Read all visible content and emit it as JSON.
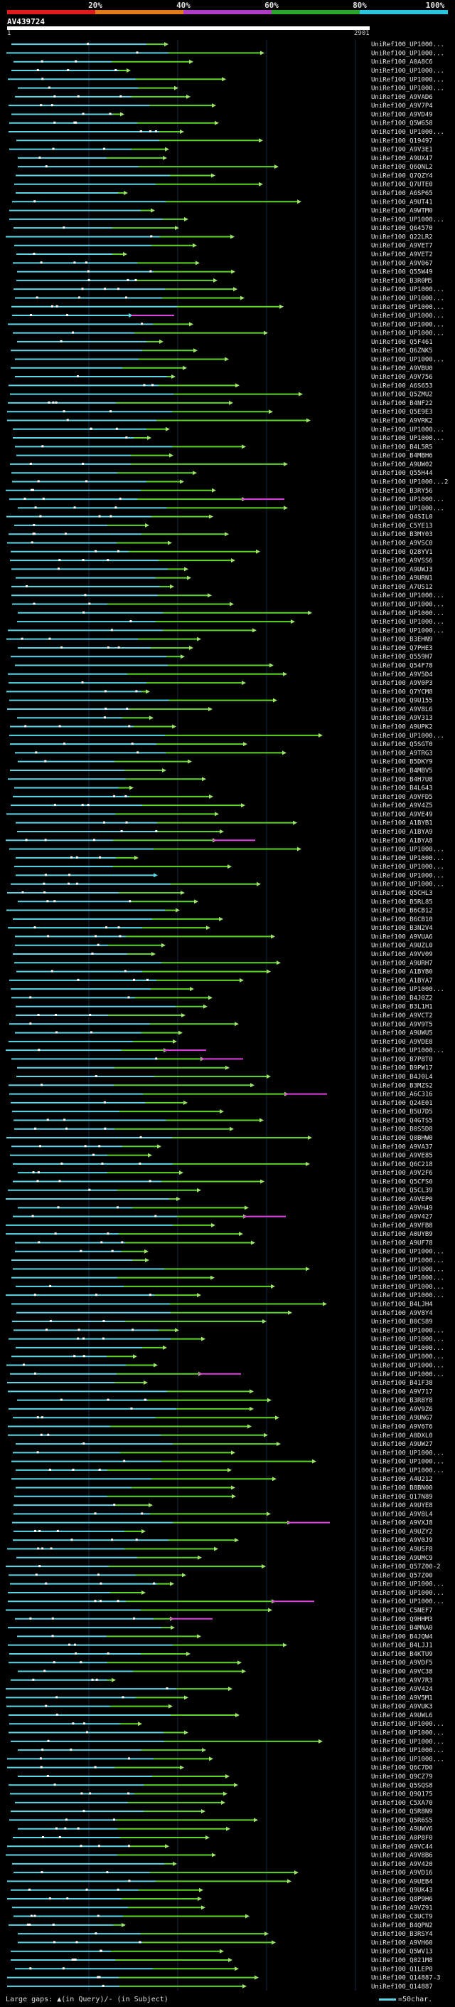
{
  "legend": {
    "ticks": [
      "20%",
      "40%",
      "60%",
      "80%",
      "100%"
    ],
    "colors": [
      "#e01b1b",
      "#e07a1b",
      "#b03bc4",
      "#2aa52a",
      "#2ac3e0"
    ]
  },
  "query": {
    "id": "AV439724",
    "start": "1",
    "end": "2901"
  },
  "colors": {
    "cyan": "#5dd7e8",
    "green": "#5cd625",
    "magenta": "#e040e0",
    "light_green": "#9ee26b",
    "background": "#000000"
  },
  "hits": [
    "UniRef100_UP1000...",
    "UniRef100_UP1000...",
    "UniRef100_A0A8C6",
    "UniRef100_UP1000...",
    "UniRef100_UP1000...",
    "UniRef100_UP1000...",
    "UniRef100_A9VAD6",
    "UniRef100_A9V7P4",
    "UniRef100_A9VD49",
    "UniRef100_Q5W658",
    "UniRef100_UP1000...",
    "UniRef100_Q19497",
    "UniRef100_A9V3E1",
    "UniRef100_A9UX47",
    "UniRef100_Q6QNL2",
    "UniRef100_Q7QZY4",
    "UniRef100_Q7UTE0",
    "UniRef100_A6SP65",
    "UniRef100_A9UT41",
    "UniRef100_A9WTM0",
    "UniRef100_UP1000...",
    "UniRef100_Q64570",
    "UniRef100_Q22LR2",
    "UniRef100_A9VET7",
    "UniRef100_A9VET2",
    "UniRef100_A9V067",
    "UniRef100_Q55W49",
    "UniRef100_B3R0M5",
    "UniRef100_UP1000...",
    "UniRef100_UP1000...",
    "UniRef100_UP1000...",
    "UniRef100_UP1000...",
    "UniRef100_UP1000...",
    "UniRef100_UP1000...",
    "UniRef100_Q5F461",
    "UniRef100_Q6ZNK5",
    "UniRef100_UP1000...",
    "UniRef100_A9VBU0",
    "UniRef100_A9V756",
    "UniRef100_A6S653",
    "UniRef100_Q5ZMU2",
    "UniRef100_B4NF22",
    "UniRef100_Q5E9E3",
    "UniRef100_A9VRK2",
    "UniRef100_UP1000...",
    "UniRef100_UP1000...",
    "UniRef100_B4L5R5",
    "UniRef100_B4MBH6",
    "UniRef100_A9UW02",
    "UniRef100_Q55H44",
    "UniRef100_UP1000...2",
    "UniRef100_B3RY56",
    "UniRef100_UP1000...",
    "UniRef100_UP1000...",
    "UniRef100_Q4SIL0",
    "UniRef100_C5YE13",
    "UniRef100_B3MY03",
    "UniRef100_A9VSC0",
    "UniRef100_Q28YV1",
    "UniRef100_A9VSS6",
    "UniRef100_A9UWJ3",
    "UniRef100_A9URN1",
    "UniRef100_A7US12",
    "UniRef100_UP1000...",
    "UniRef100_UP1000...",
    "UniRef100_UP1000...",
    "UniRef100_UP1000...",
    "UniRef100_UP1000...",
    "UniRef100_B3EHN9",
    "UniRef100_Q7PHE3",
    "UniRef100_Q559H7",
    "UniRef100_Q54F78",
    "UniRef100_A9V5D4",
    "UniRef100_A9V0P3",
    "UniRef100_Q7YCM8",
    "UniRef100_Q9U155",
    "UniRef100_A9V8L6",
    "UniRef100_A9V313",
    "UniRef100_A9UPK2",
    "UniRef100_UP1000...",
    "UniRef100_Q5SGT0",
    "UniRef100_A9TRG3",
    "UniRef100_B5DKY9",
    "UniRef100_B4MBV5",
    "UniRef100_B4H7U8",
    "UniRef100_B4L643",
    "UniRef100_A9VFD5",
    "UniRef100_A9V4Z5",
    "UniRef100_A9VE49",
    "UniRef100_A1BYB1",
    "UniRef100_A1BYA9",
    "UniRef100_A1BYA8",
    "UniRef100_UP1000...",
    "UniRef100_UP1000...",
    "UniRef100_UP1000...",
    "UniRef100_UP1000...",
    "UniRef100_UP1000...",
    "UniRef100_Q5CHL3",
    "UniRef100_B5RL85",
    "UniRef100_B6CB12",
    "UniRef100_B6CB10",
    "UniRef100_B3N2V4",
    "UniRef100_A9VUA6",
    "UniRef100_A9UZL0",
    "UniRef100_A9VV09",
    "UniRef100_A9URH7",
    "UniRef100_A1BYB0",
    "UniRef100_A1BYA7",
    "UniRef100_UP1000...",
    "UniRef100_B4J0Z2",
    "UniRef100_B3L1H1",
    "UniRef100_A9VCT2",
    "UniRef100_A9V9T5",
    "UniRef100_A9UWU5",
    "UniRef100_A9VDE8",
    "UniRef100_UP1000...",
    "UniRef100_B7P8T0",
    "UniRef100_B9PW17",
    "UniRef100_B4J0L4",
    "UniRef100_B3MZS2",
    "UniRef100_A6C316",
    "UniRef100_Q24E01",
    "UniRef100_B5U7D5",
    "UniRef100_Q4GTS5",
    "UniRef100_B0S5D8",
    "UniRef100_Q0BHW0",
    "UniRef100_A9VA37",
    "UniRef100_A9VE85",
    "UniRef100_Q6C218",
    "UniRef100_A9V2F6",
    "UniRef100_Q5CFS0",
    "UniRef100_Q5CL39",
    "UniRef100_A9VEP0",
    "UniRef100_A9VH49",
    "UniRef100_A9V427",
    "UniRef100_A9VFB8",
    "UniRef100_A0UYB9",
    "UniRef100_A9UF78",
    "UniRef100_UP1000...",
    "UniRef100_UP1000...",
    "UniRef100_UP1000...",
    "UniRef100_UP1000...",
    "UniRef100_UP1000...",
    "UniRef100_UP1000...",
    "UniRef100_B4LJH4",
    "UniRef100_A9V8Y4",
    "UniRef100_B0CS89",
    "UniRef100_UP1000...",
    "UniRef100_UP1000...",
    "UniRef100_UP1000...",
    "UniRef100_UP1000...",
    "UniRef100_UP1000...",
    "UniRef100_UP1000...",
    "UniRef100_B41F38",
    "UniRef100_A9V717",
    "UniRef100_B3R8Y8",
    "UniRef100_A9V9Z6",
    "UniRef100_A9UNG7",
    "UniRef100_A9V6T6",
    "UniRef100_A0DXL0",
    "UniRef100_A9UW27",
    "UniRef100_UP1000...",
    "UniRef100_UP1000...",
    "UniRef100_UP1000...",
    "UniRef100_A4U212",
    "UniRef100_B8BN00",
    "UniRef100_Q17N89",
    "UniRef100_A9UYE8",
    "UniRef100_A9V8L4",
    "UniRef100_A9VXJ8",
    "UniRef100_A9UZY2",
    "UniRef100_A9V0J9",
    "UniRef100_A9USF8",
    "UniRef100_A9UMC9",
    "UniRef100_Q57Z00-2",
    "UniRef100_Q57Z00",
    "UniRef100_UP1000...",
    "UniRef100_UP1000...",
    "UniRef100_UP1000...",
    "UniRef100_C5NEF7",
    "UniRef100_Q9HHM3",
    "UniRef100_B4MNA0",
    "UniRef100_B4JQW4",
    "UniRef100_B4LJJ1",
    "UniRef100_B4KTU9",
    "UniRef100_A9VDF5",
    "UniRef100_A9VC38",
    "UniRef100_A9V7R3",
    "UniRef100_A9V424",
    "UniRef100_A9V5M1",
    "UniRef100_A9VUK3",
    "UniRef100_A9UWL6",
    "UniRef100_UP1000...",
    "UniRef100_UP1000...",
    "UniRef100_UP1000...",
    "UniRef100_UP1000...",
    "UniRef100_UP1000...",
    "UniRef100_Q6C7D0",
    "UniRef100_Q9CZ79",
    "UniRef100_Q5SQS8",
    "UniRef100_Q9Q175",
    "UniRef100_C5XA70",
    "UniRef100_Q5R8N9",
    "UniRef100_Q5R6S5",
    "UniRef100_A9UWV6",
    "UniRef100_A0P8F0",
    "UniRef100_A9VC44",
    "UniRef100_A9V8B6",
    "UniRef100_A9V420",
    "UniRef100_A9VD16",
    "UniRef100_A9UEB4",
    "UniRef100_Q9UK43",
    "UniRef100_Q8P9H6",
    "UniRef100_A9VZ91",
    "UniRef100_C3UCT9",
    "UniRef100_B4QPN2",
    "UniRef100_B3RSY4",
    "UniRef100_A9VH60",
    "UniRef100_Q5WV13",
    "UniRef100_Q021M8",
    "UniRef100_Q1LEP0",
    "UniRef100_Q14887-3",
    "UniRef100_Q14887"
  ],
  "footer": {
    "gaps_text": "Large gaps: ▲(in Query)/- (in Subject)",
    "scale_text": "=50char."
  }
}
